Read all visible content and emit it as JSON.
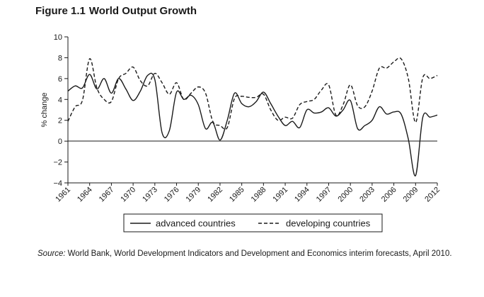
{
  "figure": {
    "number": "Figure 1.1",
    "title": "World Output Growth"
  },
  "source": {
    "label": "Source:",
    "text": "World Bank, World Development Indicators and Development and Economics interim forecasts, April 2010."
  },
  "chart_data": {
    "type": "line",
    "title": "World Output Growth",
    "xlabel": "",
    "ylabel": "% change",
    "ylim": [
      -4,
      10
    ],
    "yticks": [
      10,
      8,
      6,
      4,
      2,
      0,
      -2,
      -4
    ],
    "xlim": [
      1961,
      2012
    ],
    "xticks": [
      "1961",
      "1964",
      "1967",
      "1970",
      "1973",
      "1976",
      "1979",
      "1982",
      "1985",
      "1988",
      "1991",
      "1994",
      "1997",
      "2000",
      "2003",
      "2006",
      "2009",
      "2012"
    ],
    "grid": false,
    "zero_line": true,
    "legend_position": "bottom-center",
    "x": [
      1961,
      1962,
      1963,
      1964,
      1965,
      1966,
      1967,
      1968,
      1969,
      1970,
      1971,
      1972,
      1973,
      1974,
      1975,
      1976,
      1977,
      1978,
      1979,
      1980,
      1981,
      1982,
      1983,
      1984,
      1985,
      1986,
      1987,
      1988,
      1989,
      1990,
      1991,
      1992,
      1993,
      1994,
      1995,
      1996,
      1997,
      1998,
      1999,
      2000,
      2001,
      2002,
      2003,
      2004,
      2005,
      2006,
      2007,
      2008,
      2009,
      2010,
      2011,
      2012
    ],
    "series": [
      {
        "name": "advanced countries",
        "style": "solid",
        "color": "#1a1a1a",
        "values": [
          4.8,
          5.3,
          5.1,
          6.4,
          5.0,
          6.0,
          4.6,
          6.0,
          5.0,
          3.9,
          4.8,
          6.3,
          5.9,
          0.8,
          1.0,
          4.7,
          4.0,
          4.4,
          3.5,
          1.2,
          1.8,
          0.1,
          2.0,
          4.6,
          3.6,
          3.3,
          3.8,
          4.7,
          3.6,
          2.4,
          1.5,
          1.9,
          1.3,
          3.0,
          2.7,
          2.8,
          3.2,
          2.4,
          3.0,
          3.9,
          1.2,
          1.5,
          2.0,
          3.3,
          2.6,
          2.8,
          2.6,
          0.2,
          -3.3,
          2.3,
          2.3,
          2.5
        ]
      },
      {
        "name": "developing countries",
        "style": "dashed",
        "color": "#1a1a1a",
        "values": [
          1.9,
          3.3,
          3.9,
          7.9,
          5.1,
          4.0,
          3.8,
          6.0,
          6.5,
          7.1,
          5.8,
          5.3,
          6.5,
          5.6,
          4.5,
          5.6,
          4.0,
          4.6,
          5.2,
          4.6,
          1.9,
          1.5,
          1.3,
          4.1,
          4.3,
          4.2,
          4.2,
          4.5,
          3.0,
          2.0,
          2.3,
          2.2,
          3.5,
          3.8,
          4.0,
          4.9,
          5.4,
          2.5,
          3.5,
          5.4,
          3.4,
          3.3,
          4.8,
          7.0,
          7.0,
          7.6,
          7.9,
          6.0,
          1.8,
          6.1,
          6.0,
          6.3
        ]
      }
    ]
  }
}
